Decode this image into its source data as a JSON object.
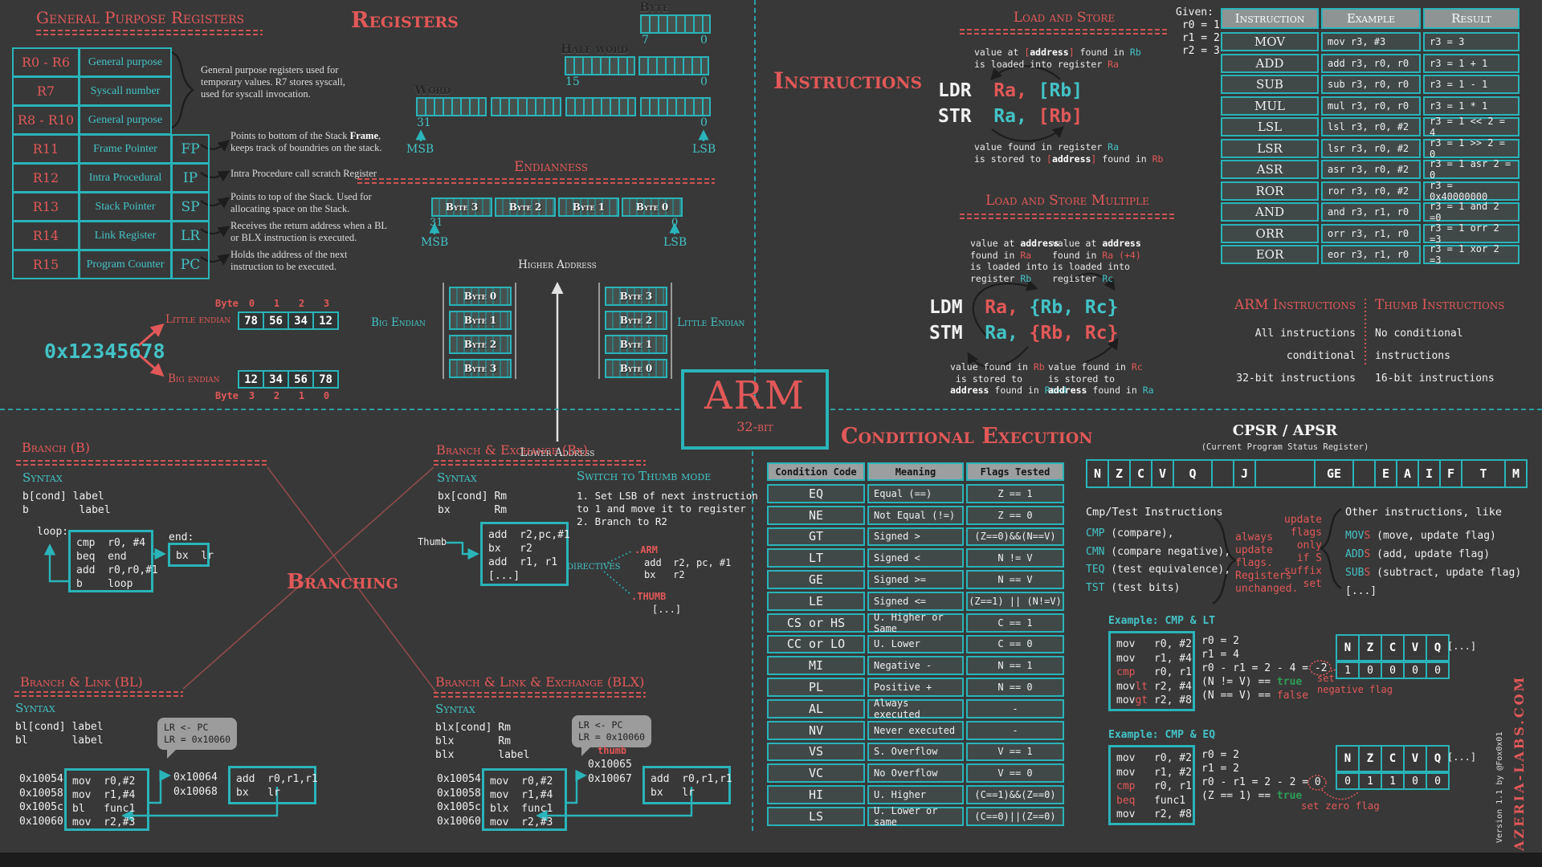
{
  "gpr": {
    "title": "General Purpose Registers",
    "rows": [
      {
        "reg": "R0 - R6",
        "desc": "General purpose",
        "alias": ""
      },
      {
        "reg": "R7",
        "desc": "Syscall number",
        "alias": ""
      },
      {
        "reg": "R8 - R10",
        "desc": "General purpose",
        "alias": ""
      },
      {
        "reg": "R11",
        "desc": "Frame Pointer",
        "alias": "FP"
      },
      {
        "reg": "R12",
        "desc": "Intra Procedural",
        "alias": "IP"
      },
      {
        "reg": "R13",
        "desc": "Stack Pointer",
        "alias": "SP"
      },
      {
        "reg": "R14",
        "desc": "Link Register",
        "alias": "LR"
      },
      {
        "reg": "R15",
        "desc": "Program Counter",
        "alias": "PC"
      }
    ],
    "brace_note": "General purpose registers used for temporary values. R7 stores syscall, used for syscall invocation.",
    "note_fp": [
      [
        {
          "t": "Points to bottom of the Stack "
        },
        {
          "t": "Frame",
          "c": "b"
        },
        {
          "t": ", keeps track of boundries on the stack."
        }
      ]
    ],
    "note_ip": [
      [
        {
          "t": "Intra Procedure call scratch Register"
        }
      ]
    ],
    "note_sp": [
      [
        {
          "t": "Points to top of the Stack. Used for allocating space on the Stack."
        }
      ]
    ],
    "note_lr": [
      [
        {
          "t": "Receives the return address when a BL or BLX instruction is executed."
        }
      ]
    ],
    "note_pc": [
      [
        {
          "t": "Holds the address of the next instruction to be executed."
        }
      ]
    ]
  },
  "registers": {
    "title": "Registers",
    "byte_label": "Byte",
    "half_label": "Half word",
    "word_label": "Word",
    "b7": "7",
    "b0": "0",
    "b15": "15",
    "b31": "31",
    "msb": "MSB",
    "lsb": "LSB"
  },
  "endianness": {
    "title": "Endianness",
    "word_bytes": [
      "Byte 3",
      "Byte 2",
      "Byte 1",
      "Byte 0"
    ],
    "hi_bit": "31",
    "lo_bit": "0",
    "msb": "MSB",
    "lsb": "LSB",
    "higher_address": "Higher Address",
    "lower_address": "Lower Address",
    "big_label": "Big Endian",
    "little_label": "Little Endian",
    "big_stack": [
      "Byte 0",
      "Byte 1",
      "Byte 2",
      "Byte 3"
    ],
    "little_stack": [
      "Byte 3",
      "Byte 2",
      "Byte 1",
      "Byte 0"
    ],
    "value": "0x12345678",
    "le_label": "Little endian",
    "be_label": "Big endian",
    "byte_word": "Byte",
    "le_index": [
      "0",
      "1",
      "2",
      "3"
    ],
    "le_bytes": [
      "78",
      "56",
      "34",
      "12"
    ],
    "be_index": [
      "3",
      "2",
      "1",
      "0"
    ],
    "be_bytes": [
      "12",
      "34",
      "56",
      "78"
    ]
  },
  "instructions_title": "Instructions",
  "load_store": {
    "title": "Load and Store",
    "note_top": [
      [
        {
          "t": "value at "
        },
        {
          "t": "[",
          "c": "r"
        },
        {
          "t": "address",
          "c": "b"
        },
        {
          "t": "]",
          "c": "r"
        },
        {
          "t": " found in "
        },
        {
          "t": "Rb",
          "c": "c"
        }
      ],
      [
        {
          "t": "is loaded into register "
        },
        {
          "t": "Ra",
          "c": "r"
        }
      ]
    ],
    "ldr": [
      {
        "t": "LDR",
        "c": "w"
      },
      {
        "t": "  "
      },
      {
        "t": "Ra,",
        "c": "r"
      },
      {
        "t": " "
      },
      {
        "t": "[Rb]",
        "c": "c"
      }
    ],
    "str": [
      {
        "t": "STR",
        "c": "w"
      },
      {
        "t": "  "
      },
      {
        "t": "Ra,",
        "c": "c"
      },
      {
        "t": " "
      },
      {
        "t": "[Rb]",
        "c": "r"
      }
    ],
    "note_bottom": [
      [
        {
          "t": "value found in register "
        },
        {
          "t": "Ra",
          "c": "c"
        }
      ],
      [
        {
          "t": "is stored to "
        },
        {
          "t": "[",
          "c": "r"
        },
        {
          "t": "address",
          "c": "b"
        },
        {
          "t": "]",
          "c": "r"
        },
        {
          "t": " found in "
        },
        {
          "t": "Rb",
          "c": "r"
        }
      ]
    ]
  },
  "ldm_stm": {
    "title": "Load and Store Multiple",
    "note_tl": [
      [
        {
          "t": "value at "
        },
        {
          "t": "address",
          "c": "b"
        }
      ],
      [
        {
          "t": "found in "
        },
        {
          "t": "Ra",
          "c": "r"
        }
      ],
      [
        {
          "t": "is loaded into"
        }
      ],
      [
        {
          "t": "register "
        },
        {
          "t": "Rb",
          "c": "c"
        }
      ]
    ],
    "note_tr": [
      [
        {
          "t": "value at "
        },
        {
          "t": "address",
          "c": "b"
        }
      ],
      [
        {
          "t": "found in "
        },
        {
          "t": "Ra (+4)",
          "c": "r"
        }
      ],
      [
        {
          "t": "is loaded into"
        }
      ],
      [
        {
          "t": "register "
        },
        {
          "t": "Rc",
          "c": "c"
        }
      ]
    ],
    "ldm": [
      {
        "t": "LDM",
        "c": "w"
      },
      {
        "t": "  "
      },
      {
        "t": "Ra,",
        "c": "r"
      },
      {
        "t": " "
      },
      {
        "t": "{Rb, Rc}",
        "c": "c"
      }
    ],
    "stm": [
      {
        "t": "STM",
        "c": "w"
      },
      {
        "t": "  "
      },
      {
        "t": "Ra,",
        "c": "c"
      },
      {
        "t": " "
      },
      {
        "t": "{Rb, Rc}",
        "c": "r"
      }
    ],
    "note_bl": [
      [
        {
          "t": "value found in "
        },
        {
          "t": "Rb",
          "c": "r"
        }
      ],
      [
        {
          "t": " is stored to"
        }
      ],
      [
        {
          "t": "address",
          "c": "b"
        },
        {
          "t": " found in "
        },
        {
          "t": "Ra+4",
          "c": "c"
        }
      ]
    ],
    "note_br": [
      [
        {
          "t": "value found in "
        },
        {
          "t": "Rc",
          "c": "r"
        }
      ],
      [
        {
          "t": "is stored to"
        }
      ],
      [
        {
          "t": "address",
          "c": "b"
        },
        {
          "t": " found in "
        },
        {
          "t": "Ra",
          "c": "c"
        }
      ]
    ]
  },
  "given": [
    "Given:",
    " r0 = 1",
    " r1 = 2",
    " r2 = 3"
  ],
  "instr_table": {
    "headers": [
      "Instruction",
      "Example",
      "Result"
    ],
    "rows": [
      {
        "i": "MOV",
        "e": "mov r3, #3",
        "r": "r3 = 3"
      },
      {
        "i": "ADD",
        "e": "add r3, r0, r0",
        "r": "r3 = 1 + 1"
      },
      {
        "i": "SUB",
        "e": "sub r3, r0, r0",
        "r": "r3 = 1 - 1"
      },
      {
        "i": "MUL",
        "e": "mul r3, r0, r0",
        "r": "r3 = 1 * 1"
      },
      {
        "i": "LSL",
        "e": "lsl r3, r0, #2",
        "r": "r3 = 1 << 2 = 4"
      },
      {
        "i": "LSR",
        "e": "lsr r3, r0, #2",
        "r": "r3 = 1 >> 2 = 0"
      },
      {
        "i": "ASR",
        "e": "asr r3, r0, #2",
        "r": "r3 = 1 asr 2 = 0"
      },
      {
        "i": "ROR",
        "e": "ror r3, r0, #2",
        "r": "r3 = 0x40000000"
      },
      {
        "i": "AND",
        "e": "and r3, r1, r0",
        "r": "r3 = 1 and 2 =0"
      },
      {
        "i": "ORR",
        "e": "orr r3, r1, r0",
        "r": "r3 = 1 orr 2 =3"
      },
      {
        "i": "EOR",
        "e": "eor r3, r1, r0",
        "r": "r3 = 1 xor 2 =3"
      }
    ]
  },
  "arm_thumb": {
    "arm_title": "ARM Instructions",
    "arm_lines": [
      "All instructions conditional",
      "32-bit instructions"
    ],
    "thumb_title": "Thumb Instructions",
    "thumb_lines": [
      "No conditional instructions",
      "16-bit instructions"
    ]
  },
  "logo": {
    "name": "ARM",
    "sub": "32-bit"
  },
  "branching_title": "Branching",
  "branch_b": {
    "title": "Branch (B)",
    "syntax_label": "Syntax",
    "syntax": [
      "b[cond] label",
      "b        label"
    ],
    "loop_label": "loop:",
    "end_label": "end:",
    "loop_code": [
      "cmp  r0, #4",
      "beq  end",
      "add  r0,r0,#1",
      "b    loop"
    ],
    "end_code": [
      "bx  lr"
    ]
  },
  "branch_bx": {
    "title": "Branch & Exchange (Bx)",
    "syntax_label": "Syntax",
    "syntax": [
      "bx[cond] Rm",
      "bx       Rm"
    ],
    "switch_title": "Switch to Thumb mode",
    "steps": [
      "1. Set LSB of next instruction",
      "to 1 and move it to register",
      "2. Branch to R2"
    ],
    "thumb_label": "Thumb",
    "code": [
      "add  r2,pc,#1",
      "bx   r2",
      "add  r1, r1",
      "[...]"
    ],
    "directives_label": "directives",
    "arm_directive": ".ARM",
    "arm_code": [
      "add  r2, pc, #1",
      "bx   r2"
    ],
    "thumb_directive": ".THUMB",
    "thumb_code": [
      "[...]"
    ]
  },
  "branch_bl": {
    "title": "Branch & Link  (BL)",
    "syntax_label": "Syntax",
    "syntax": [
      "bl[cond] label",
      "bl       label"
    ],
    "bubble": [
      "LR <- PC",
      "LR = 0x10060"
    ],
    "addrs": [
      "0x10054",
      "0x10058",
      "0x1005c",
      "0x10060"
    ],
    "code": [
      "mov  r0,#2",
      "mov  r1,#4",
      "bl   func1",
      "mov  r2,#3"
    ],
    "ret_addrs": [
      "0x10064",
      "0x10068"
    ],
    "ret_code": [
      "add  r0,r1,r1",
      "bx   lr"
    ]
  },
  "branch_blx": {
    "title": "Branch & Link & Exchange (BLX)",
    "syntax_label": "Syntax",
    "syntax": [
      "blx[cond] Rm",
      "blx       Rm",
      "blx       label"
    ],
    "bubble": [
      "LR <- PC",
      "LR = 0x10060"
    ],
    "thumb_note": "thumb",
    "addrs": [
      "0x10054",
      "0x10058",
      "0x1005c",
      "0x10060"
    ],
    "code": [
      "mov  r0,#2",
      "mov  r1,#4",
      "blx  func1",
      "mov  r2,#3"
    ],
    "ret_addrs": [
      "0x10065",
      "0x10067"
    ],
    "ret_code": [
      "add  r0,r1,r1",
      "bx   lr"
    ]
  },
  "cond_exec": {
    "title": "Conditional Execution",
    "headers": [
      "Condition Code",
      "Meaning",
      "Flags Tested"
    ],
    "rows": [
      {
        "c": "EQ",
        "m": "Equal (==)",
        "f": "Z == 1"
      },
      {
        "c": "NE",
        "m": "Not Equal (!=)",
        "f": "Z == 0"
      },
      {
        "c": "GT",
        "m": "Signed >",
        "f": "(Z==0)&&(N==V)"
      },
      {
        "c": "LT",
        "m": "Signed <",
        "f": "N != V"
      },
      {
        "c": "GE",
        "m": "Signed >=",
        "f": "N == V"
      },
      {
        "c": "LE",
        "m": "Signed <=",
        "f": "(Z==1) || (N!=V)"
      },
      {
        "c": "CS or HS",
        "m": "U. Higher or Same",
        "f": "C == 1"
      },
      {
        "c": "CC or LO",
        "m": "U. Lower",
        "f": "C == 0"
      },
      {
        "c": "MI",
        "m": "Negative -",
        "f": "N == 1"
      },
      {
        "c": "PL",
        "m": "Positive +",
        "f": "N == 0"
      },
      {
        "c": "AL",
        "m": "Always executed",
        "f": "-"
      },
      {
        "c": "NV",
        "m": "Never executed",
        "f": "-"
      },
      {
        "c": "VS",
        "m": "S. Overflow",
        "f": "V == 1"
      },
      {
        "c": "VC",
        "m": "No Overflow",
        "f": "V == 0"
      },
      {
        "c": "HI",
        "m": "U. Higher",
        "f": "(C==1)&&(Z==0)"
      },
      {
        "c": "LS",
        "m": "U. Lower or same",
        "f": "(C==0)||(Z==0)"
      }
    ]
  },
  "cpsr": {
    "title": "CPSR / APSR",
    "subtitle": "(Current Program Status Register)",
    "bits": [
      "N",
      "Z",
      "C",
      "V",
      "Q",
      "",
      "J",
      "",
      "GE",
      "",
      "E",
      "A",
      "I",
      "F",
      "T",
      "M"
    ],
    "cmp_title": "Cmp/Test Instructions",
    "cmp_lines": [
      [
        {
          "t": "CMP",
          "c": "c"
        },
        {
          "t": " (compare),"
        }
      ],
      [
        {
          "t": "CMN",
          "c": "c"
        },
        {
          "t": " (compare negative),"
        }
      ],
      [
        {
          "t": "TEQ",
          "c": "c"
        },
        {
          "t": " (test equivalence),"
        }
      ],
      [
        {
          "t": "TST",
          "c": "c"
        },
        {
          "t": " (test bits)"
        }
      ]
    ],
    "always_lines": [
      "always",
      "update",
      "flags.",
      "Registers",
      "unchanged."
    ],
    "suffix_lines": [
      "update",
      "flags",
      "only",
      "if S",
      "suffix",
      "set"
    ],
    "other_title": "Other instructions, like",
    "other_lines": [
      [
        {
          "t": "MOV",
          "c": "c"
        },
        {
          "t": "S",
          "c": "r"
        },
        {
          "t": " (move, update flag)"
        }
      ],
      [
        {
          "t": "ADD",
          "c": "c"
        },
        {
          "t": "S",
          "c": "r"
        },
        {
          "t": " (add, update flag)"
        }
      ],
      [
        {
          "t": "SUB",
          "c": "c"
        },
        {
          "t": "S",
          "c": "r"
        },
        {
          "t": " (subtract, update flag)"
        }
      ],
      [
        {
          "t": "[...]"
        }
      ]
    ]
  },
  "ex_lt": {
    "title": "Example: CMP & LT",
    "code": [
      [
        {
          "t": "mov   r0, #2"
        }
      ],
      [
        {
          "t": "mov   r1, #4"
        }
      ],
      [
        {
          "t": "cmp",
          "c": "r"
        },
        {
          "t": "   r0, r1"
        }
      ],
      [
        {
          "t": "mov"
        },
        {
          "t": "lt",
          "c": "r"
        },
        {
          "t": " r2, #4"
        }
      ],
      [
        {
          "t": "mov"
        },
        {
          "t": "gt",
          "c": "r"
        },
        {
          "t": " r2, #8"
        }
      ]
    ],
    "calc": [
      [
        {
          "t": "r0 = 2"
        }
      ],
      [
        {
          "t": "r1 = 4"
        }
      ],
      [
        {
          "t": "r0 - r1 = 2 - 4 = -2"
        }
      ],
      [
        {
          "t": "(N != V) == "
        },
        {
          "t": "true",
          "c": "g"
        }
      ],
      [
        {
          "t": "(N == V) == "
        },
        {
          "t": "false",
          "c": "r"
        }
      ]
    ],
    "callout": [
      "set",
      "negative flag"
    ],
    "flag_headers": [
      "N",
      "Z",
      "C",
      "V",
      "Q"
    ],
    "flags_more": "[...]",
    "flag_values": [
      "1",
      "0",
      "0",
      "0",
      "0"
    ]
  },
  "ex_eq": {
    "title": "Example: CMP & EQ",
    "code": [
      [
        {
          "t": "mov   r0, #2"
        }
      ],
      [
        {
          "t": "mov   r1, #2"
        }
      ],
      [
        {
          "t": "cmp",
          "c": "r"
        },
        {
          "t": "   r0, r1"
        }
      ],
      [
        {
          "t": "beq",
          "c": "r"
        },
        {
          "t": "   func1"
        }
      ],
      [
        {
          "t": "mov   r2, #8"
        }
      ]
    ],
    "calc": [
      [
        {
          "t": "r0 = 2"
        }
      ],
      [
        {
          "t": "r1 = 2"
        }
      ],
      [
        {
          "t": "r0 - r1 = 2 - 2 = 0"
        }
      ],
      [
        {
          "t": "(Z == 1) == "
        },
        {
          "t": "true",
          "c": "g"
        }
      ]
    ],
    "callout": [
      "set zero flag"
    ],
    "flag_headers": [
      "N",
      "Z",
      "C",
      "V",
      "Q"
    ],
    "flags_more": "[...]",
    "flag_values": [
      "0",
      "1",
      "1",
      "0",
      "0"
    ]
  },
  "credits": {
    "version": "Version 1.1 by @Fox0x01",
    "brand": "AZERIA-LABS.COM"
  }
}
